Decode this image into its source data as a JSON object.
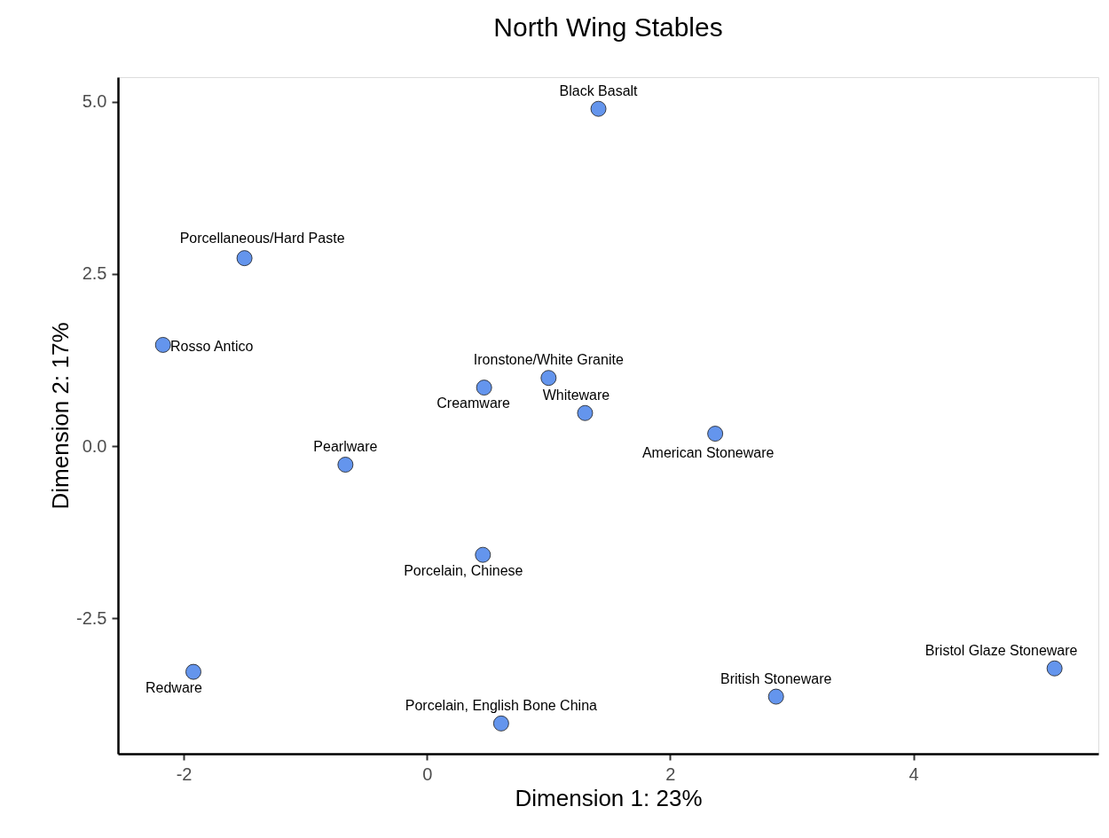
{
  "chart_data": {
    "type": "scatter",
    "title": "North Wing Stables",
    "xlabel": "Dimension 1:  23%",
    "ylabel": "Dimension 2:  17%",
    "x": [
      1.41,
      -1.5,
      -2.17,
      0.47,
      1.0,
      1.3,
      2.37,
      -0.67,
      0.46,
      -1.92,
      0.61,
      2.87,
      5.16
    ],
    "series": [
      {
        "color": "#6495ed",
        "values": [
          4.9,
          2.73,
          1.47,
          0.85,
          0.99,
          0.48,
          0.18,
          -0.27,
          -1.58,
          -3.28,
          -4.03,
          -3.64,
          -3.23
        ]
      }
    ],
    "annotations": [
      {
        "text": "Black Basalt",
        "x": 1.41,
        "y": 4.9
      },
      {
        "text": "Porcellaneous/Hard Paste",
        "x": -1.5,
        "y": 2.73
      },
      {
        "text": "Rosso Antico",
        "x": -2.17,
        "y": 1.47
      },
      {
        "text": "Creamware",
        "x": 0.47,
        "y": 0.85
      },
      {
        "text": "Ironstone/White Granite",
        "x": 1.0,
        "y": 0.99
      },
      {
        "text": "Whiteware",
        "x": 1.3,
        "y": 0.48
      },
      {
        "text": "American Stoneware",
        "x": 2.37,
        "y": 0.18
      },
      {
        "text": "Pearlware",
        "x": -0.67,
        "y": -0.27
      },
      {
        "text": "Porcelain, Chinese",
        "x": 0.46,
        "y": -1.58
      },
      {
        "text": "Redware",
        "x": -1.92,
        "y": -3.28
      },
      {
        "text": "Porcelain, English Bone China",
        "x": 0.61,
        "y": -4.03
      },
      {
        "text": "British Stoneware",
        "x": 2.87,
        "y": -3.64
      },
      {
        "text": "Bristol Glaze Stoneware",
        "x": 5.16,
        "y": -3.23
      }
    ],
    "xlim": [
      -2.54,
      5.52
    ],
    "ylim": [
      -4.47,
      5.36
    ],
    "xticks": [
      -2,
      0,
      2,
      4
    ],
    "yticks": [
      {
        "value": -2.5,
        "label": "-2.5"
      },
      {
        "value": 0,
        "label": "0.0"
      },
      {
        "value": 2.5,
        "label": "2.5"
      },
      {
        "value": 5,
        "label": "5.0"
      }
    ],
    "grid": false,
    "marker": "circle"
  }
}
